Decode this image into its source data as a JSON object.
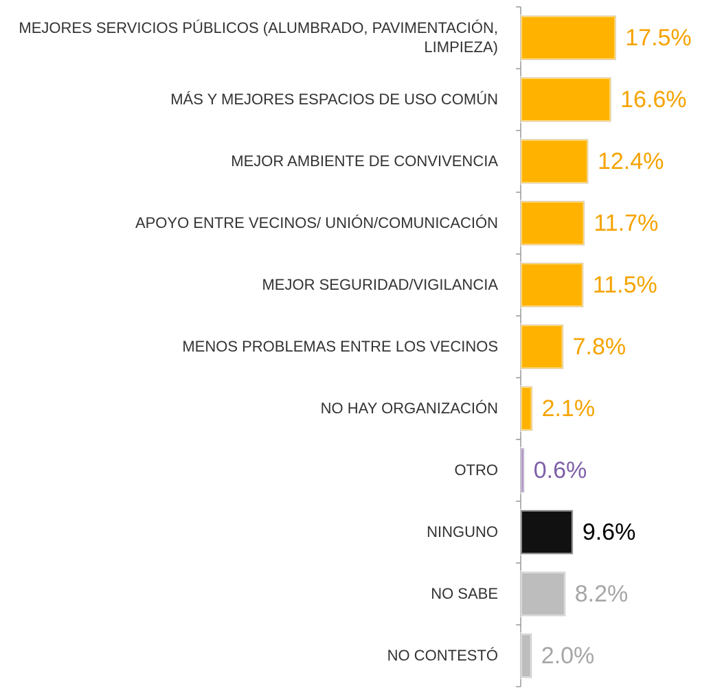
{
  "chart_data": {
    "type": "bar",
    "orientation": "horizontal",
    "categories": [
      "MEJORES SERVICIOS PÚBLICOS (ALUMBRADO, PAVIMENTACIÓN, LIMPIEZA)",
      "MÁS Y MEJORES ESPACIOS DE USO COMÚN",
      "MEJOR AMBIENTE DE CONVIVENCIA",
      "APOYO ENTRE VECINOS/ UNIÓN/COMUNICACIÓN",
      "MEJOR SEGURIDAD/VIGILANCIA",
      "MENOS PROBLEMAS ENTRE LOS VECINOS",
      "NO HAY ORGANIZACIÓN",
      "OTRO",
      "NINGUNO",
      "NO SABE",
      "NO CONTESTÓ"
    ],
    "values": [
      17.5,
      16.6,
      12.4,
      11.7,
      11.5,
      7.8,
      2.1,
      0.6,
      9.6,
      8.2,
      2.0
    ],
    "value_labels": [
      "17.5%",
      "16.6%",
      "12.4%",
      "11.7%",
      "11.5%",
      "7.8%",
      "2.1%",
      "0.6%",
      "9.6%",
      "8.2%",
      "2.0%"
    ],
    "colors": [
      "#FFB300",
      "#FFB300",
      "#FFB300",
      "#FFB300",
      "#FFB300",
      "#FFB300",
      "#FFB300",
      "#8E6BB0",
      "#111111",
      "#BDBDBD",
      "#BDBDBD"
    ],
    "label_colors": [
      "#F5A300",
      "#F5A300",
      "#F5A300",
      "#F5A300",
      "#F5A300",
      "#F5A300",
      "#F5A300",
      "#7E5FA8",
      "#000000",
      "#A6A6A6",
      "#A6A6A6"
    ]
  }
}
